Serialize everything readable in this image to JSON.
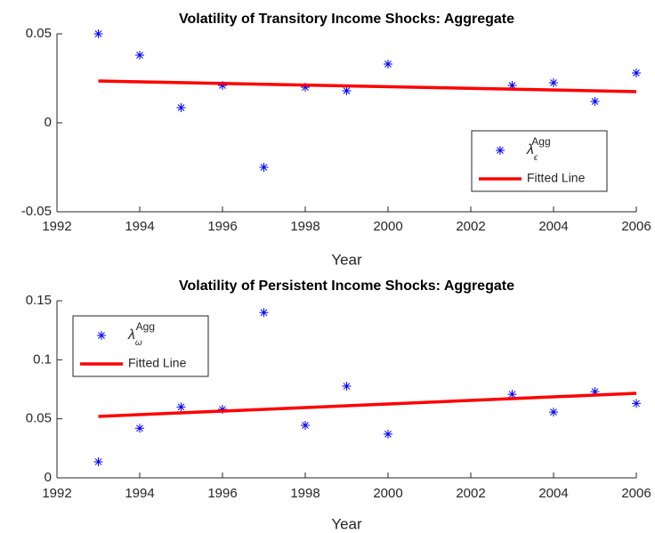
{
  "chart_data": [
    {
      "type": "scatter",
      "title": "Volatility of Transitory Income Shocks: Aggregate",
      "xlabel": "Year",
      "xlim": [
        1992,
        2006
      ],
      "xticks": [
        1992,
        1994,
        1996,
        1998,
        2000,
        2002,
        2004,
        2006
      ],
      "ylim": [
        -0.05,
        0.05
      ],
      "yticks": [
        -0.05,
        0,
        0.05
      ],
      "legend": "lower right",
      "series": [
        {
          "name": "λ",
          "name_sub": "ϵ",
          "name_sup": "Agg",
          "style": "marker",
          "color": "#0000ff",
          "x": [
            1993,
            1994,
            1995,
            1996,
            1997,
            1998,
            1999,
            2000,
            2003,
            2004,
            2005,
            2006
          ],
          "values": [
            0.05,
            0.038,
            0.0085,
            0.021,
            -0.025,
            0.02,
            0.018,
            0.033,
            0.021,
            0.0225,
            0.012,
            0.028
          ]
        },
        {
          "name": "Fitted Line",
          "style": "line",
          "color": "#ff0000",
          "x": [
            1993,
            2006
          ],
          "values": [
            0.0235,
            0.0175
          ]
        }
      ]
    },
    {
      "type": "scatter",
      "title": "Volatility of Persistent Income Shocks: Aggregate",
      "xlabel": "Year",
      "xlim": [
        1992,
        2006
      ],
      "xticks": [
        1992,
        1994,
        1996,
        1998,
        2000,
        2002,
        2004,
        2006
      ],
      "ylim": [
        0,
        0.15
      ],
      "yticks": [
        0,
        0.05,
        0.1,
        0.15
      ],
      "legend": "upper left",
      "series": [
        {
          "name": "λ",
          "name_sub": "ω",
          "name_sup": "Agg",
          "style": "marker",
          "color": "#0000ff",
          "x": [
            1993,
            1994,
            1995,
            1996,
            1997,
            1998,
            1999,
            2000,
            2003,
            2004,
            2005,
            2006
          ],
          "values": [
            0.0136,
            0.042,
            0.06,
            0.058,
            0.14,
            0.0445,
            0.0776,
            0.037,
            0.0708,
            0.0557,
            0.073,
            0.063
          ]
        },
        {
          "name": "Fitted Line",
          "style": "line",
          "color": "#ff0000",
          "x": [
            1993,
            2006
          ],
          "values": [
            0.052,
            0.0716
          ]
        }
      ]
    }
  ]
}
